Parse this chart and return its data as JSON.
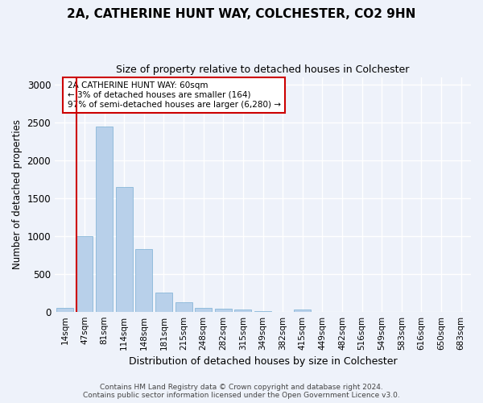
{
  "title": "2A, CATHERINE HUNT WAY, COLCHESTER, CO2 9HN",
  "subtitle": "Size of property relative to detached houses in Colchester",
  "xlabel": "Distribution of detached houses by size in Colchester",
  "ylabel": "Number of detached properties",
  "categories": [
    "14sqm",
    "47sqm",
    "81sqm",
    "114sqm",
    "148sqm",
    "181sqm",
    "215sqm",
    "248sqm",
    "282sqm",
    "315sqm",
    "349sqm",
    "382sqm",
    "415sqm",
    "449sqm",
    "482sqm",
    "516sqm",
    "549sqm",
    "583sqm",
    "616sqm",
    "650sqm",
    "683sqm"
  ],
  "values": [
    50,
    1000,
    2450,
    1650,
    830,
    250,
    120,
    50,
    40,
    30,
    5,
    0,
    30,
    0,
    0,
    0,
    0,
    0,
    0,
    0,
    0
  ],
  "bar_color": "#b8d0ea",
  "bar_edge_color": "#7aafd4",
  "marker_line_color": "#cc0000",
  "annotation_text": "2A CATHERINE HUNT WAY: 60sqm\n← 3% of detached houses are smaller (164)\n97% of semi-detached houses are larger (6,280) →",
  "annotation_box_edgecolor": "#cc0000",
  "background_color": "#eef2fa",
  "grid_color": "#ffffff",
  "ylim": [
    0,
    3100
  ],
  "yticks": [
    0,
    500,
    1000,
    1500,
    2000,
    2500,
    3000
  ],
  "footer_line1": "Contains HM Land Registry data © Crown copyright and database right 2024.",
  "footer_line2": "Contains public sector information licensed under the Open Government Licence v3.0."
}
